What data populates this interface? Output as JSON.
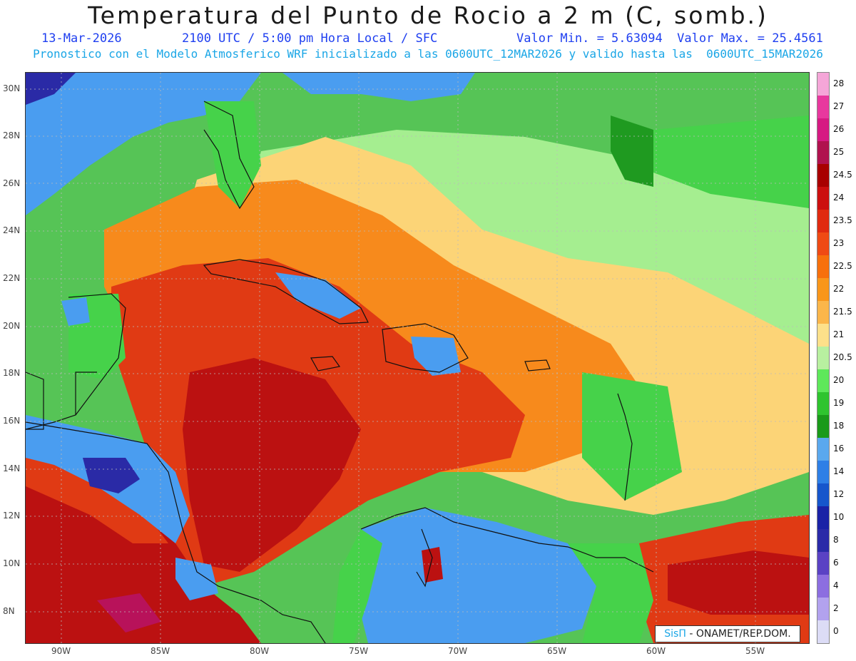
{
  "title": "Temperatura del Punto de Rocio a 2 m (C, somb.)",
  "subtitle": {
    "date": "13-Mar-2026",
    "time": "2100 UTC / 5:00 pm Hora Local / SFC",
    "minmax": "Valor Min. = 5.63094  Valor Max. = 25.4561"
  },
  "model_line": "Pronostico con el Modelo Atmosferico WRF inicializado a las 0600UTC_12MAR2026 y valido hasta las  0600UTC_15MAR2026",
  "credit": {
    "brand": "SisΠ",
    "org": " - ONAMET/REP.DOM."
  },
  "lat_labels": [
    "30N",
    "28N",
    "26N",
    "24N",
    "22N",
    "20N",
    "18N",
    "16N",
    "14N",
    "12N",
    "10N",
    "8N"
  ],
  "lon_labels": [
    "90W",
    "85W",
    "80W",
    "75W",
    "70W",
    "65W",
    "60W",
    "55W"
  ],
  "colorbar": {
    "labels": [
      "28",
      "27",
      "26",
      "25",
      "24.5",
      "24",
      "23.5",
      "23",
      "22.5",
      "22",
      "21.5",
      "21",
      "20.5",
      "20",
      "19",
      "18",
      "16",
      "14",
      "12",
      "10",
      "8",
      "6",
      "4",
      "2",
      "0"
    ],
    "colors": [
      "#f5a6d8",
      "#e8389e",
      "#d61a82",
      "#b0124e",
      "#a80000",
      "#cc0f0f",
      "#e02a10",
      "#ef4a14",
      "#f7700c",
      "#f9961a",
      "#fbb64a",
      "#fde08a",
      "#b8f0a0",
      "#5ee85a",
      "#2fc42f",
      "#1a9a1a",
      "#5aa8ee",
      "#2e7fe6",
      "#1656cc",
      "#1a22a6",
      "#2a2aa8",
      "#5a42c4",
      "#8c6ee0",
      "#b2a2ee",
      "#dcdcf6"
    ]
  },
  "map_layers": {
    "ocean_north": "#56c456",
    "band_blue": "#4a9df0",
    "warm_core": "#e03a14",
    "hot": "#bb1111",
    "orange": "#f78a1c",
    "yellow": "#fcd477",
    "light_green": "#a5ee90",
    "green": "#46d24a",
    "dark_green": "#1f9a20",
    "navy": "#2a2aa6",
    "magenta": "#b8125a",
    "coast": "#111111"
  }
}
